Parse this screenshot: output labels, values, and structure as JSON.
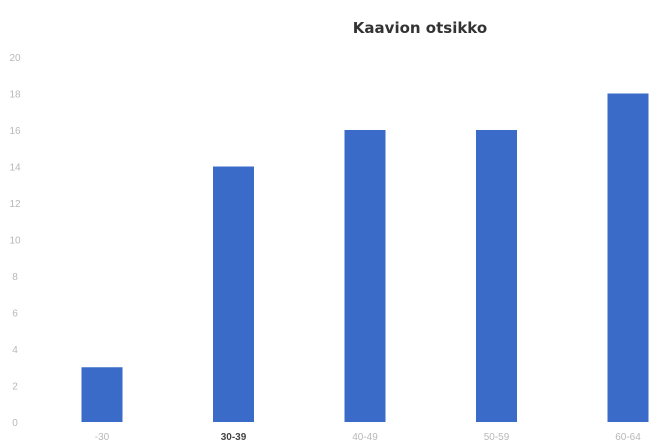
{
  "chart_data": {
    "type": "bar",
    "title": "Kaavion otsikko",
    "xlabel": "",
    "ylabel": "",
    "categories": [
      "-30",
      "30-39",
      "40-49",
      "50-59",
      "60-64"
    ],
    "values": [
      3,
      14,
      16,
      16,
      18
    ],
    "ylim": [
      0,
      20
    ],
    "yticks": [
      0,
      2,
      4,
      6,
      8,
      10,
      12,
      14,
      16,
      18,
      20
    ],
    "grid": false,
    "legend": "none",
    "colors": {
      "bar": "#3a6bc8",
      "axis_text": "#b8b8b8",
      "title": "#333333"
    }
  }
}
